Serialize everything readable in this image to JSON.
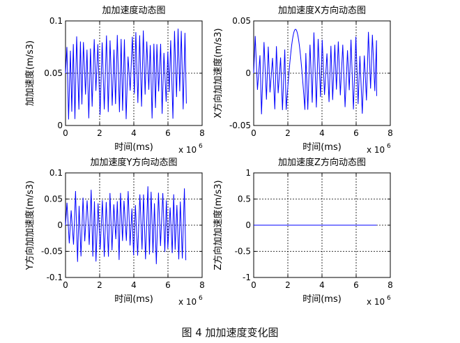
{
  "figure_caption": "图 4  加加速度变化图",
  "chart_data": [
    {
      "type": "line",
      "title": "加加速度动态图",
      "xlabel": "时间(ms)",
      "ylabel": "加加速度(m/s3)",
      "x_exponent_label": "x 10",
      "x_exponent_power": "6",
      "xlim": [
        0,
        8
      ],
      "ylim": [
        0,
        0.1
      ],
      "xticks": [
        0,
        2,
        4,
        6,
        8
      ],
      "xtick_labels": [
        "0",
        "2",
        "4",
        "6",
        "8"
      ],
      "yticks": [
        0,
        0.05,
        0.1
      ],
      "ytick_labels": [
        "0",
        "0.05",
        "0.1"
      ],
      "grid": true,
      "line_color": "#0000ff",
      "signal": {
        "kind": "oscillating",
        "x_end": 7.2,
        "center": 0.05,
        "amplitude": 0.045,
        "cycles": 34
      }
    },
    {
      "type": "line",
      "title": "加加速度X方向动态图",
      "xlabel": "时间(ms)",
      "ylabel": "X方向加加速度(m/s3)",
      "x_exponent_label": "x 10",
      "x_exponent_power": "6",
      "xlim": [
        0,
        8
      ],
      "ylim": [
        -0.05,
        0.05
      ],
      "xticks": [
        0,
        2,
        4,
        6,
        8
      ],
      "xtick_labels": [
        "0",
        "2",
        "4",
        "6",
        "8"
      ],
      "yticks": [
        -0.05,
        0,
        0.05
      ],
      "ytick_labels": [
        "-0.05",
        "0",
        "0.05"
      ],
      "grid": true,
      "line_color": "#0000ff",
      "signal": {
        "kind": "oscillating-with-hump",
        "x_end": 7.2,
        "center": 0,
        "amplitude": 0.04,
        "cycles": 30,
        "hump_start": 1.9,
        "hump_end": 3.0,
        "hump_peak": 0.042
      }
    },
    {
      "type": "line",
      "title": "加加速度Y方向动态图",
      "xlabel": "时间(ms)",
      "ylabel": "Y方向加加速度(m/s3)",
      "x_exponent_label": "x 10",
      "x_exponent_power": "6",
      "xlim": [
        0,
        8
      ],
      "ylim": [
        -0.1,
        0.1
      ],
      "xticks": [
        0,
        2,
        4,
        6,
        8
      ],
      "xtick_labels": [
        "0",
        "2",
        "4",
        "6",
        "8"
      ],
      "yticks": [
        -0.1,
        -0.05,
        0,
        0.05,
        0.1
      ],
      "ytick_labels": [
        "-0.1",
        "-0.05",
        "0",
        "0.05",
        "0.1"
      ],
      "grid": true,
      "line_color": "#0000ff",
      "signal": {
        "kind": "oscillating",
        "x_end": 7.2,
        "center": 0,
        "amplitude": 0.075,
        "cycles": 32
      }
    },
    {
      "type": "line",
      "title": "加加速度Z方向动态图",
      "xlabel": "时间(ms)",
      "ylabel": "Z方向加加速度(m/s3)",
      "x_exponent_label": "x 10",
      "x_exponent_power": "6",
      "xlim": [
        0,
        8
      ],
      "ylim": [
        -1,
        1
      ],
      "xticks": [
        0,
        2,
        4,
        6,
        8
      ],
      "xtick_labels": [
        "0",
        "2",
        "4",
        "6",
        "8"
      ],
      "yticks": [
        -1,
        -0.5,
        0,
        0.5,
        1
      ],
      "ytick_labels": [
        "-1",
        "-0.5",
        "0",
        "0.5",
        "1"
      ],
      "grid": true,
      "line_color": "#0000ff",
      "signal": {
        "kind": "flat",
        "x_end": 7.2,
        "center": 0
      }
    }
  ]
}
